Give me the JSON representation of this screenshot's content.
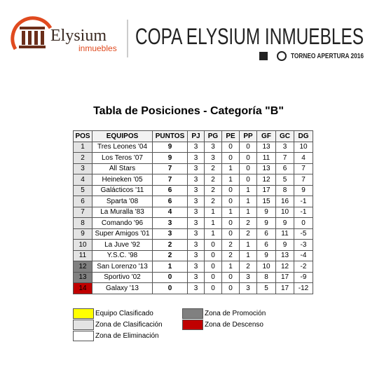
{
  "header": {
    "brand": "Elysium",
    "brand_sub": "inmuebles",
    "title": "COPA ELYSIUM INMUEBLES",
    "subtitle": "TORNEO APERTURA 2016"
  },
  "table": {
    "title": "Tabla de Posiciones - Categoría \"B\"",
    "columns": [
      "POS",
      "EQUIPOS",
      "PUNTOS",
      "PJ",
      "PG",
      "PE",
      "PP",
      "GF",
      "GC",
      "DG"
    ],
    "rows": [
      [
        1,
        "Tres Leones '04",
        9,
        3,
        3,
        0,
        0,
        13,
        3,
        10
      ],
      [
        2,
        "Los Teros '07",
        9,
        3,
        3,
        0,
        0,
        11,
        7,
        4
      ],
      [
        3,
        "All Stars",
        7,
        3,
        2,
        1,
        0,
        13,
        6,
        7
      ],
      [
        4,
        "Heineken '05",
        7,
        3,
        2,
        1,
        0,
        12,
        5,
        7
      ],
      [
        5,
        "Galácticos '11",
        6,
        3,
        2,
        0,
        1,
        17,
        8,
        9
      ],
      [
        6,
        "Sparta '08",
        6,
        3,
        2,
        0,
        1,
        15,
        16,
        -1
      ],
      [
        7,
        "La Muralla '83",
        4,
        3,
        1,
        1,
        1,
        9,
        10,
        -1
      ],
      [
        8,
        "Comando '96",
        3,
        3,
        1,
        0,
        2,
        9,
        9,
        0
      ],
      [
        9,
        "Super Amigos '01",
        3,
        3,
        1,
        0,
        2,
        6,
        11,
        -5
      ],
      [
        10,
        "La Juve '92",
        2,
        3,
        0,
        2,
        1,
        6,
        9,
        -3
      ],
      [
        11,
        "Y.S.C. '98",
        2,
        3,
        0,
        2,
        1,
        9,
        13,
        -4
      ],
      [
        12,
        "San Lorenzo '13",
        1,
        3,
        0,
        1,
        2,
        10,
        12,
        -2
      ],
      [
        13,
        "Sportivo '02",
        0,
        3,
        0,
        0,
        3,
        8,
        17,
        -9
      ],
      [
        14,
        "Galaxy '13",
        0,
        3,
        0,
        0,
        3,
        5,
        17,
        -12
      ]
    ],
    "pos_colors": [
      "#e3e3e3",
      "#e3e3e3",
      "#e3e3e3",
      "#e3e3e3",
      "#e3e3e3",
      "#e3e3e3",
      "#e3e3e3",
      "#e3e3e3",
      "#e3e3e3",
      "#e3e3e3",
      "#e3e3e3",
      "#808080",
      "#808080",
      "#c00000"
    ]
  },
  "legend": [
    {
      "label": "Equipo Clasificado",
      "color": "#ffff00"
    },
    {
      "label": "Zona de Clasificación",
      "color": "#e3e3e3"
    },
    {
      "label": "Zona de Eliminación",
      "color": "#ffffff"
    },
    {
      "label": "Zona de Promoción",
      "color": "#808080"
    },
    {
      "label": "Zona de Descenso",
      "color": "#c00000"
    }
  ]
}
